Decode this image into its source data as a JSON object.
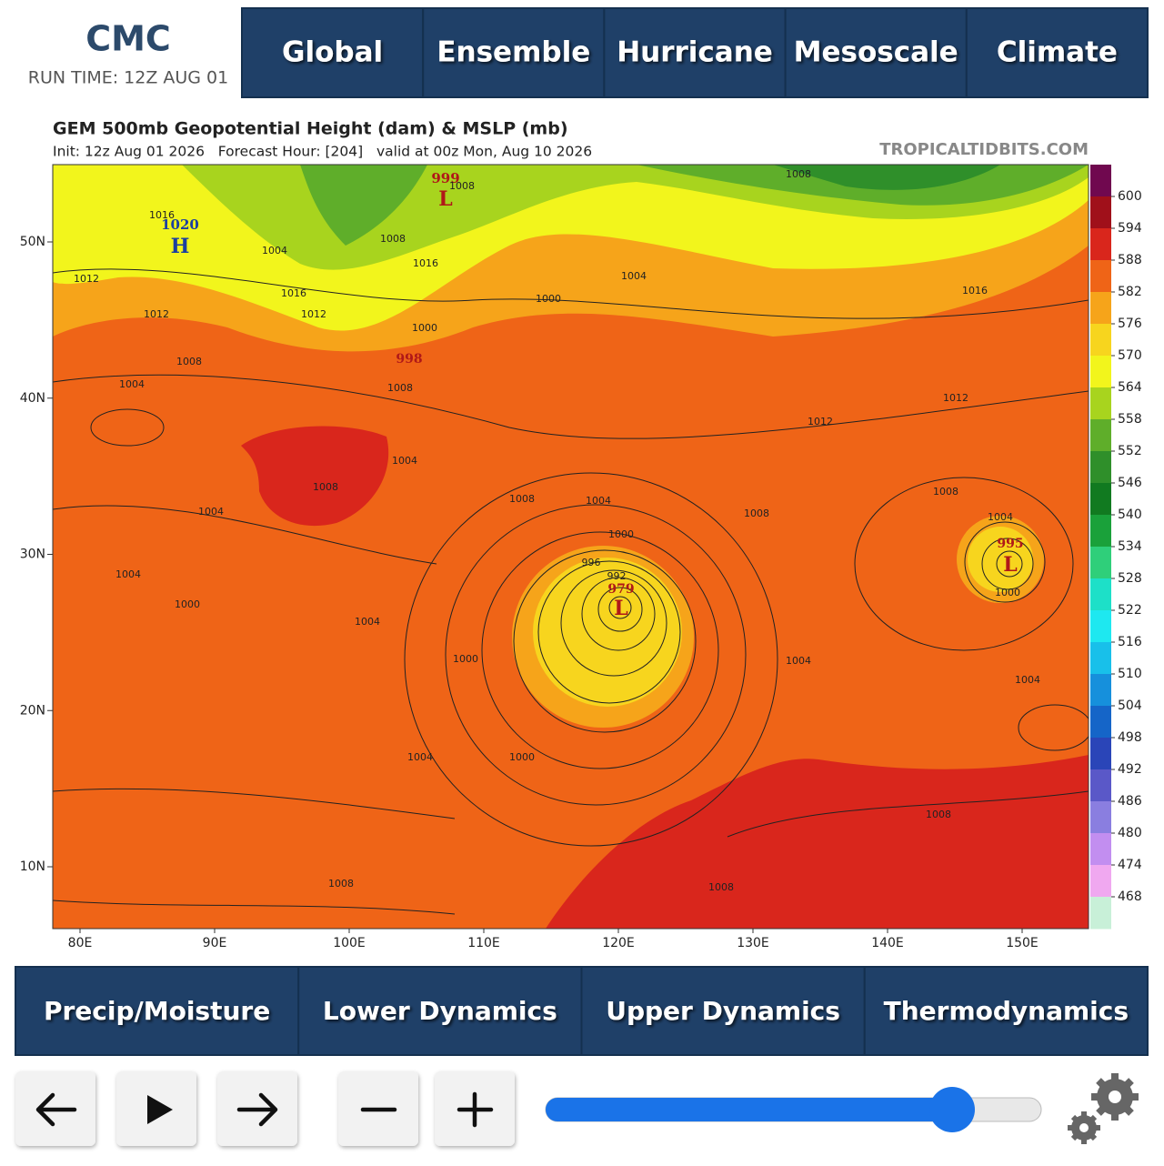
{
  "header": {
    "title": "CMC",
    "run_time": "RUN TIME: 12Z AUG 01"
  },
  "top_nav": [
    "Global",
    "Ensemble",
    "Hurricane",
    "Mesoscale",
    "Climate"
  ],
  "map": {
    "title": "GEM 500mb Geopotential Height (dam) & MSLP (mb)",
    "subtitle": "Init: 12z Aug 01 2026   Forecast Hour: [204]   valid at 00z Mon, Aug 10 2026",
    "credit": "TROPICALTIDBITS.COM",
    "lat_labels": [
      "50N",
      "40N",
      "30N",
      "20N",
      "10N"
    ],
    "lon_labels": [
      "80E",
      "90E",
      "100E",
      "110E",
      "120E",
      "130E",
      "140E",
      "150E"
    ],
    "colorbar_labels": [
      600,
      594,
      588,
      582,
      576,
      570,
      564,
      558,
      552,
      546,
      540,
      534,
      528,
      522,
      516,
      510,
      504,
      498,
      492,
      486,
      480,
      474,
      468
    ],
    "colorbar_colors": [
      "#70084f",
      "#a0101a",
      "#d9261c",
      "#ef6417",
      "#f6a41a",
      "#f7d51e",
      "#f2f51c",
      "#a8d41e",
      "#5fae2a",
      "#2f8f2a",
      "#117a20",
      "#1aa13a",
      "#2fcf7a",
      "#1de0c8",
      "#1ee8f0",
      "#18c0ea",
      "#1690dc",
      "#1565c8",
      "#2a45b8",
      "#5a58c8",
      "#8a7ee0",
      "#c28ef0",
      "#f0a8f0",
      "#c8f0d8"
    ],
    "systems": [
      "1020",
      "H",
      "999",
      "L",
      "998",
      "979",
      "L",
      "995",
      "L"
    ],
    "isobars": [
      "1016",
      "1012",
      "1012",
      "1008",
      "1004",
      "1004",
      "1016",
      "1012",
      "1008",
      "1016",
      "1008",
      "1000",
      "1008",
      "1004",
      "1000",
      "1004",
      "1008",
      "1004",
      "996",
      "992",
      "1000",
      "1000",
      "1004",
      "1000",
      "1004",
      "1004",
      "1000",
      "1008",
      "1008",
      "1004",
      "1004",
      "1008",
      "1008",
      "1012",
      "1012",
      "1016",
      "1008",
      "1004",
      "1000",
      "1004",
      "1008",
      "1008"
    ]
  },
  "bottom_nav": [
    "Precip/Moisture",
    "Lower Dynamics",
    "Upper Dynamics",
    "Thermodynamics"
  ]
}
